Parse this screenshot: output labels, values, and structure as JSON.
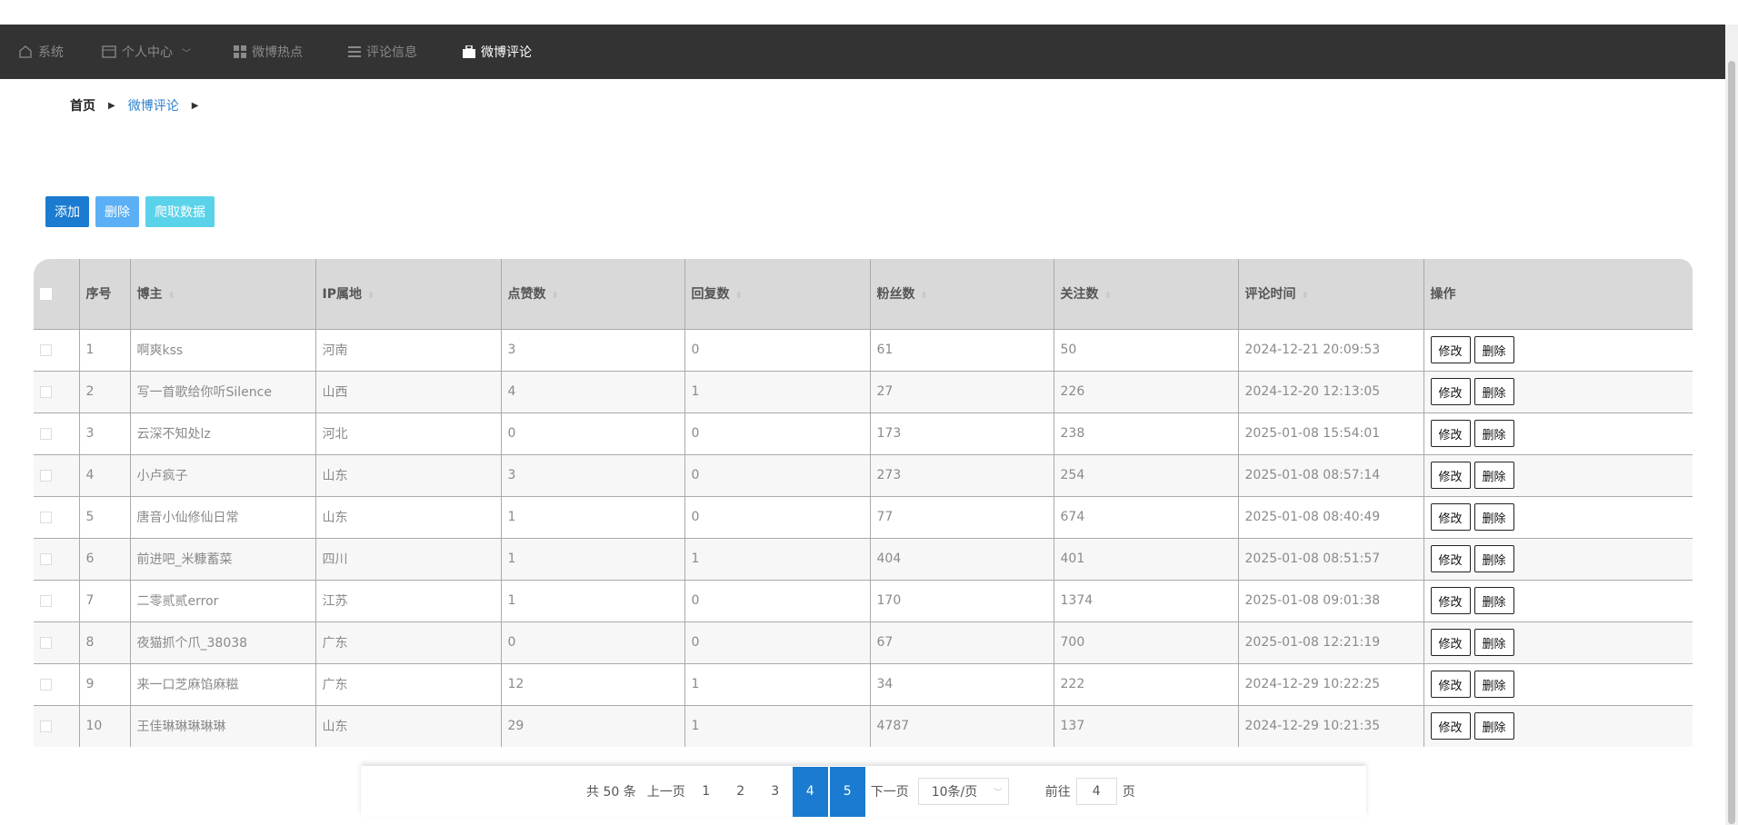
{
  "nav": {
    "items": [
      {
        "label": "系统",
        "icon": "home-icon"
      },
      {
        "label": "个人中心",
        "icon": "card-icon",
        "dropdown": true
      },
      {
        "label": "微博热点",
        "icon": "grid-icon"
      },
      {
        "label": "评论信息",
        "icon": "list-icon"
      },
      {
        "label": "微博评论",
        "icon": "briefcase-icon",
        "active": true
      }
    ]
  },
  "breadcrumb": {
    "home": "首页",
    "current": "微博评论"
  },
  "toolbar": {
    "add": "添加",
    "delete": "删除",
    "crawl": "爬取数据"
  },
  "colors": {
    "add": "#1a7bd0",
    "delete": "#5bb0f5",
    "crawl": "#5ad3ea",
    "nav_bg": "#333333"
  },
  "table": {
    "headers": [
      "序号",
      "博主",
      "IP属地",
      "点赞数",
      "回复数",
      "粉丝数",
      "关注数",
      "评论时间",
      "操作"
    ],
    "edit_label": "修改",
    "delete_label": "删除",
    "rows": [
      [
        "1",
        "啊爽kss",
        "河南",
        "3",
        "0",
        "61",
        "50",
        "2024-12-21 20:09:53"
      ],
      [
        "2",
        "写一首歌给你听Silence",
        "山西",
        "4",
        "1",
        "27",
        "226",
        "2024-12-20 12:13:05"
      ],
      [
        "3",
        "云深不知处lz",
        "河北",
        "0",
        "0",
        "173",
        "238",
        "2025-01-08 15:54:01"
      ],
      [
        "4",
        "小卢疯子",
        "山东",
        "3",
        "0",
        "273",
        "254",
        "2025-01-08 08:57:14"
      ],
      [
        "5",
        "唐音小仙修仙日常",
        "山东",
        "1",
        "0",
        "77",
        "674",
        "2025-01-08 08:40:49"
      ],
      [
        "6",
        "前进吧_米糠蓄菜",
        "四川",
        "1",
        "1",
        "404",
        "401",
        "2025-01-08 08:51:57"
      ],
      [
        "7",
        "二零贰贰error",
        "江苏",
        "1",
        "0",
        "170",
        "1374",
        "2025-01-08 09:01:38"
      ],
      [
        "8",
        "夜猫抓个爪_38038",
        "广东",
        "0",
        "0",
        "67",
        "700",
        "2025-01-08 12:21:19"
      ],
      [
        "9",
        "来一口芝麻馅麻糍",
        "广东",
        "12",
        "1",
        "34",
        "222",
        "2024-12-29 10:22:25"
      ],
      [
        "10",
        "王佳琳琳琳琳琳",
        "山东",
        "29",
        "1",
        "4787",
        "137",
        "2024-12-29 10:21:35"
      ]
    ]
  },
  "pagination": {
    "total": "共 50 条",
    "prev": "上一页",
    "pages": [
      "1",
      "2",
      "3",
      "4",
      "5"
    ],
    "current": "4",
    "next": "下一页",
    "page_size": "10条/页",
    "goto_prefix": "前往",
    "goto_value": "4",
    "goto_suffix": "页"
  }
}
